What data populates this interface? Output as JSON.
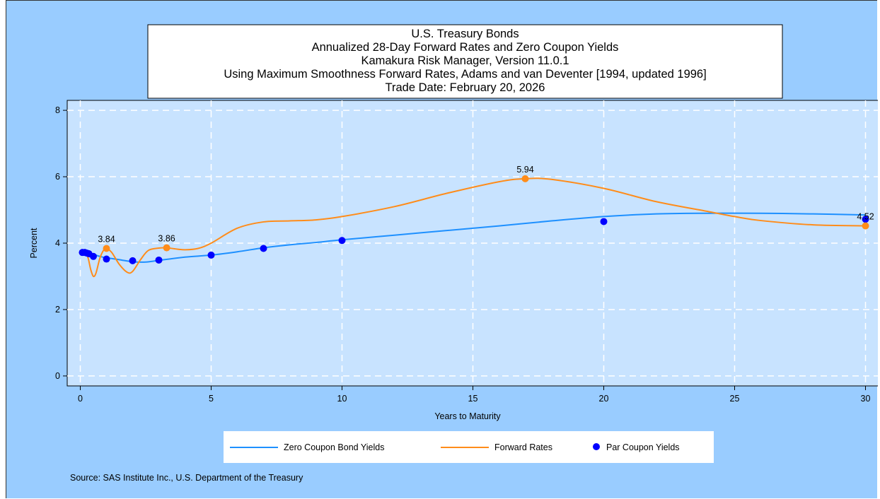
{
  "chart_data": {
    "type": "line",
    "title_lines": [
      "U.S. Treasury Bonds",
      "Annualized 28-Day Forward Rates and Zero Coupon Yields",
      "Kamakura Risk Manager, Version 11.0.1",
      "Using Maximum Smoothness Forward Rates, Adams and van Deventer [1994, updated 1996]",
      "Trade Date: February 20, 2026"
    ],
    "xlabel": "Years to Maturity",
    "ylabel": "Percent",
    "xlim": [
      -0.5,
      30.5
    ],
    "ylim": [
      -0.3,
      8.3
    ],
    "xticks": [
      0,
      5,
      10,
      15,
      20,
      25,
      30
    ],
    "yticks": [
      0,
      2,
      4,
      6,
      8
    ],
    "grid": true,
    "legend_position": "bottom",
    "series": [
      {
        "name": "Zero Coupon Bond Yields",
        "kind": "line",
        "color": "#1e90ff",
        "x": [
          0.08,
          0.25,
          0.5,
          0.75,
          1,
          1.5,
          2,
          2.5,
          3,
          4,
          5,
          6,
          7,
          8,
          9,
          10,
          12,
          14,
          16,
          18,
          20,
          22,
          24,
          26,
          28,
          30
        ],
        "y": [
          3.72,
          3.7,
          3.66,
          3.6,
          3.56,
          3.5,
          3.44,
          3.43,
          3.48,
          3.58,
          3.64,
          3.74,
          3.86,
          3.95,
          4.02,
          4.1,
          4.24,
          4.38,
          4.52,
          4.67,
          4.8,
          4.88,
          4.9,
          4.9,
          4.88,
          4.85
        ]
      },
      {
        "name": "Forward Rates",
        "kind": "line",
        "color": "#ff8c1a",
        "x": [
          0.08,
          0.2,
          0.3,
          0.4,
          0.5,
          0.6,
          0.75,
          0.9,
          1,
          1.2,
          1.5,
          1.8,
          2,
          2.3,
          2.6,
          3,
          3.3,
          3.6,
          4,
          4.5,
          5,
          6,
          7,
          8,
          9,
          10,
          12,
          14,
          16,
          17,
          18,
          20,
          22,
          24,
          25,
          26,
          28,
          30
        ],
        "y": [
          3.72,
          3.69,
          3.55,
          3.2,
          3.0,
          3.1,
          3.55,
          3.8,
          3.84,
          3.72,
          3.35,
          3.12,
          3.15,
          3.5,
          3.78,
          3.85,
          3.86,
          3.83,
          3.8,
          3.84,
          4.0,
          4.45,
          4.64,
          4.67,
          4.7,
          4.8,
          5.1,
          5.5,
          5.85,
          5.94,
          5.92,
          5.65,
          5.25,
          4.95,
          4.8,
          4.68,
          4.55,
          4.52
        ]
      },
      {
        "name": "Par Coupon Yields",
        "kind": "scatter",
        "color": "#0000ff",
        "x": [
          0.08,
          0.17,
          0.25,
          0.33,
          0.5,
          1,
          2,
          3,
          5,
          7,
          10,
          20,
          30
        ],
        "y": [
          3.72,
          3.72,
          3.7,
          3.68,
          3.6,
          3.52,
          3.47,
          3.49,
          3.64,
          3.84,
          4.08,
          4.65,
          4.72
        ]
      }
    ],
    "labeled_points": [
      {
        "series": "Forward Rates",
        "x": 1,
        "y": 3.84,
        "label": "3.84"
      },
      {
        "series": "Forward Rates",
        "x": 3.3,
        "y": 3.86,
        "label": "3.86"
      },
      {
        "series": "Forward Rates",
        "x": 17,
        "y": 5.94,
        "label": "5.94"
      },
      {
        "series": "Forward Rates",
        "x": 30,
        "y": 4.52,
        "label": "4.52"
      }
    ],
    "source": "Source: SAS Institute Inc., U.S. Department of the Treasury"
  }
}
